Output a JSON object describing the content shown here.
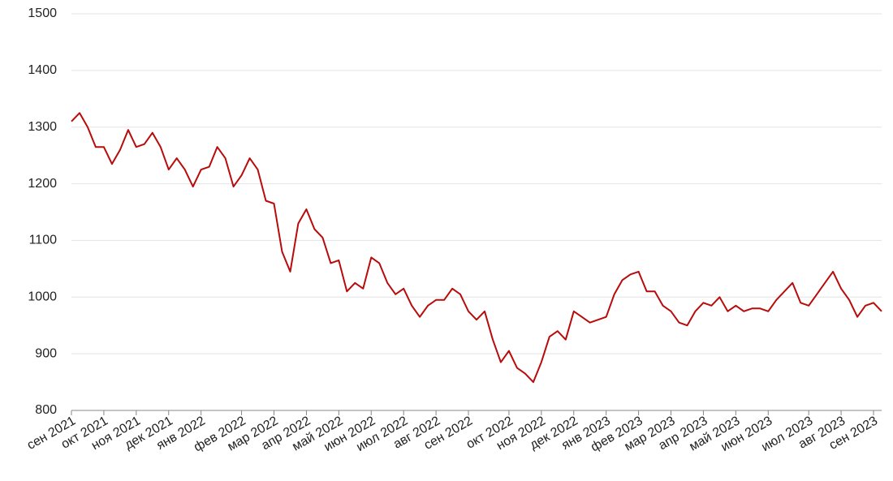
{
  "chart_data": {
    "type": "line",
    "color": "#b80b0b",
    "grid": true,
    "ylim": [
      800,
      1500
    ],
    "yticks": [
      800,
      900,
      1000,
      1100,
      1200,
      1300,
      1400,
      1500
    ],
    "categories": [
      "сен 2021",
      null,
      null,
      null,
      "окт 2021",
      null,
      null,
      null,
      "ноя 2021",
      null,
      null,
      null,
      "дек 2021",
      null,
      null,
      null,
      "янв 2022",
      null,
      null,
      null,
      null,
      "фев 2022",
      null,
      null,
      null,
      "мар 2022",
      null,
      null,
      null,
      "апр 2022",
      null,
      null,
      null,
      "май 2022",
      null,
      null,
      null,
      "июн 2022",
      null,
      null,
      null,
      "июл 2022",
      null,
      null,
      null,
      "авг 2022",
      null,
      null,
      null,
      "сен 2022",
      null,
      null,
      null,
      null,
      "окт 2022",
      null,
      null,
      null,
      "ноя 2022",
      null,
      null,
      null,
      "дек 2022",
      null,
      null,
      null,
      "янв 2023",
      null,
      null,
      null,
      "фев 2023",
      null,
      null,
      null,
      "мар 2023",
      null,
      null,
      null,
      "апр 2023",
      null,
      null,
      null,
      "май 2023",
      null,
      null,
      null,
      "июн 2023",
      null,
      null,
      null,
      null,
      "июл 2023",
      null,
      null,
      null,
      "авг 2023",
      null,
      null,
      null,
      "сен 2023",
      null
    ],
    "values": [
      1310,
      1325,
      1300,
      1265,
      1265,
      1235,
      1260,
      1295,
      1265,
      1270,
      1290,
      1265,
      1225,
      1245,
      1225,
      1195,
      1225,
      1230,
      1265,
      1245,
      1195,
      1215,
      1245,
      1225,
      1170,
      1165,
      1080,
      1045,
      1130,
      1155,
      1120,
      1105,
      1060,
      1065,
      1010,
      1025,
      1015,
      1070,
      1060,
      1025,
      1005,
      1015,
      985,
      965,
      985,
      995,
      995,
      1015,
      1005,
      975,
      960,
      975,
      925,
      885,
      905,
      875,
      865,
      850,
      885,
      930,
      940,
      925,
      975,
      965,
      955,
      960,
      965,
      1005,
      1030,
      1040,
      1045,
      1010,
      1010,
      985,
      975,
      955,
      950,
      975,
      990,
      985,
      1000,
      975,
      985,
      975,
      980,
      980,
      975,
      995,
      1010,
      1025,
      990,
      985,
      1005,
      1025,
      1045,
      1015,
      995,
      965,
      985,
      990,
      975
    ]
  }
}
